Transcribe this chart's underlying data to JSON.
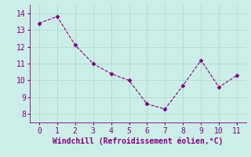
{
  "x": [
    0,
    1,
    2,
    3,
    4,
    5,
    6,
    7,
    8,
    9,
    10,
    11
  ],
  "y": [
    13.4,
    13.8,
    12.1,
    11.0,
    10.4,
    10.0,
    8.6,
    8.3,
    9.7,
    11.2,
    9.6,
    10.3
  ],
  "xlabel": "Windchill (Refroidissement éolien,°C)",
  "xlim": [
    -0.5,
    11.5
  ],
  "ylim": [
    7.5,
    14.5
  ],
  "yticks": [
    8,
    9,
    10,
    11,
    12,
    13,
    14
  ],
  "xticks": [
    0,
    1,
    2,
    3,
    4,
    5,
    6,
    7,
    8,
    9,
    10,
    11
  ],
  "line_color": "#800080",
  "marker": "D",
  "marker_size": 2.5,
  "bg_color": "#cceee8",
  "grid_color": "#b0d8d0",
  "label_color": "#800080",
  "tick_color": "#800080",
  "xlabel_fontsize": 7,
  "tick_fontsize": 7
}
